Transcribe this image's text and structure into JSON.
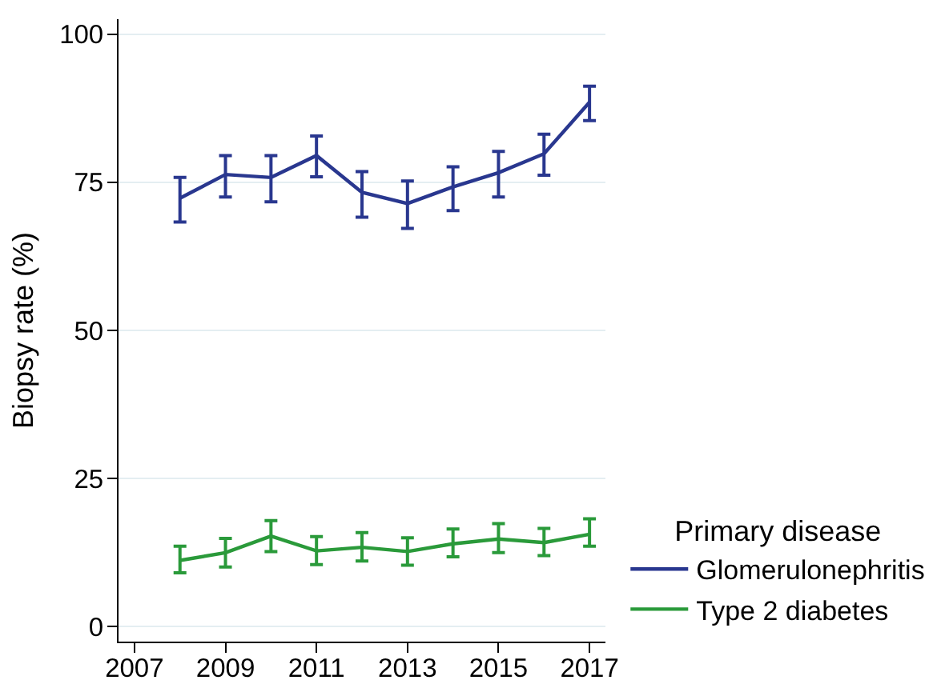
{
  "chart_data": {
    "type": "line",
    "ylabel": "Biopsy rate (%)",
    "legend_title": "Primary disease",
    "x": [
      2008,
      2009,
      2010,
      2011,
      2012,
      2013,
      2014,
      2015,
      2016,
      2017
    ],
    "series": [
      {
        "name": "Glomerulonephritis",
        "color": "#29378f",
        "values": [
          72.3,
          76.3,
          75.8,
          79.5,
          73.3,
          71.4,
          74.2,
          76.6,
          79.8,
          88.5
        ],
        "errors": [
          [
            68.3,
            75.8
          ],
          [
            72.5,
            79.5
          ],
          [
            71.7,
            79.5
          ],
          [
            75.9,
            82.8
          ],
          [
            69.1,
            76.8
          ],
          [
            67.2,
            75.2
          ],
          [
            70.2,
            77.6
          ],
          [
            72.5,
            80.2
          ],
          [
            76.2,
            83.1
          ],
          [
            85.4,
            91.2
          ]
        ]
      },
      {
        "name": "Type 2 diabetes",
        "color": "#2a9a3a",
        "values": [
          11.2,
          12.5,
          15.3,
          12.8,
          13.4,
          12.7,
          14.0,
          14.8,
          14.2,
          15.6
        ],
        "errors": [
          [
            9.1,
            13.6
          ],
          [
            10.1,
            14.9
          ],
          [
            12.7,
            17.9
          ],
          [
            10.5,
            15.2
          ],
          [
            11.1,
            15.9
          ],
          [
            10.4,
            15.0
          ],
          [
            11.8,
            16.5
          ],
          [
            12.5,
            17.4
          ],
          [
            12.0,
            16.6
          ],
          [
            13.6,
            18.2
          ]
        ]
      }
    ],
    "xlim": [
      2006.65,
      2017.35
    ],
    "xticks": [
      2007,
      2009,
      2011,
      2013,
      2015,
      2017
    ],
    "ylim": [
      -2.5,
      102.5
    ],
    "yticks": [
      0,
      25,
      50,
      75,
      100
    ],
    "grid": "y",
    "legend": "bottom right",
    "marker": "none",
    "line_style": "solid"
  }
}
